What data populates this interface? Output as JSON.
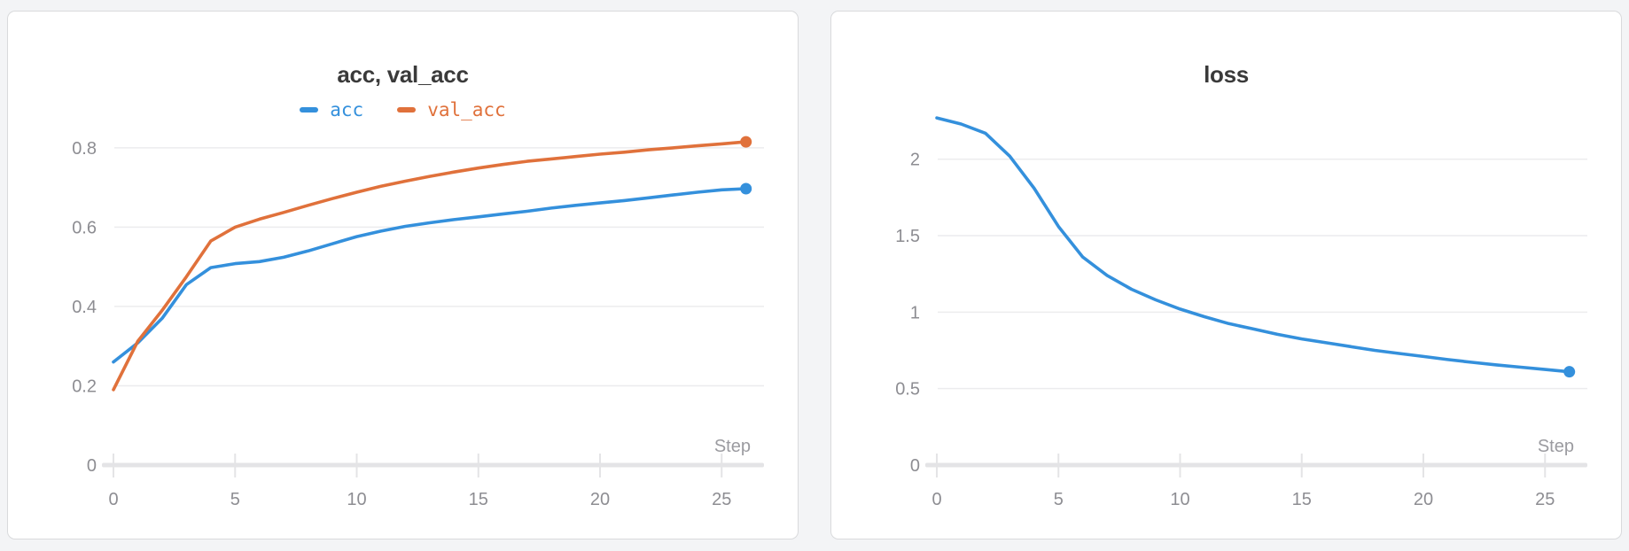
{
  "page": {
    "background_color": "#f3f4f6",
    "panel_background": "#ffffff",
    "panel_border_color": "#d9dadc",
    "gridline_color": "#ececee",
    "axis_color": "#e4e4e6",
    "tick_text_color": "#8d8d92",
    "title_text_color": "#3a3a3a"
  },
  "chart_data": [
    {
      "type": "line",
      "title": "acc, val_acc",
      "xlabel": "Step",
      "ylabel": "",
      "legend_position": "top-center",
      "grid": true,
      "x_ticks": [
        0,
        5,
        10,
        15,
        20,
        25
      ],
      "y_ticks": [
        {
          "value": 0.8,
          "label": "0.8"
        },
        {
          "value": 0.6,
          "label": "0.6"
        },
        {
          "value": 0.4,
          "label": "0.4"
        },
        {
          "value": 0.2,
          "label": "0.2"
        },
        {
          "value": 0,
          "label": "0"
        }
      ],
      "xlim": [
        0,
        26
      ],
      "ylim": [
        0,
        0.86
      ],
      "x": [
        0,
        1,
        2,
        3,
        4,
        5,
        6,
        7,
        8,
        9,
        10,
        11,
        12,
        13,
        14,
        15,
        16,
        17,
        18,
        19,
        20,
        21,
        22,
        23,
        24,
        25,
        26
      ],
      "series": [
        {
          "name": "acc",
          "color": "#3490dc",
          "end_dot": true,
          "values": [
            0.26,
            0.308,
            0.37,
            0.455,
            0.498,
            0.508,
            0.513,
            0.524,
            0.54,
            0.558,
            0.576,
            0.59,
            0.602,
            0.611,
            0.619,
            0.626,
            0.633,
            0.64,
            0.648,
            0.655,
            0.661,
            0.667,
            0.674,
            0.681,
            0.688,
            0.694,
            0.697
          ]
        },
        {
          "name": "val_acc",
          "color": "#e0713b",
          "end_dot": true,
          "values": [
            0.19,
            0.312,
            0.39,
            0.475,
            0.565,
            0.6,
            0.62,
            0.637,
            0.655,
            0.672,
            0.688,
            0.703,
            0.716,
            0.728,
            0.739,
            0.749,
            0.758,
            0.766,
            0.772,
            0.778,
            0.784,
            0.789,
            0.795,
            0.8,
            0.805,
            0.81,
            0.815
          ]
        }
      ]
    },
    {
      "type": "line",
      "title": "loss",
      "xlabel": "Step",
      "ylabel": "",
      "legend_position": "none",
      "grid": true,
      "x_ticks": [
        0,
        5,
        10,
        15,
        20,
        25
      ],
      "y_ticks": [
        {
          "value": 2,
          "label": "2"
        },
        {
          "value": 1.5,
          "label": "1.5"
        },
        {
          "value": 1,
          "label": "1"
        },
        {
          "value": 0.5,
          "label": "0.5"
        },
        {
          "value": 0,
          "label": "0"
        }
      ],
      "xlim": [
        0,
        26
      ],
      "ylim": [
        0,
        2.23
      ],
      "x": [
        0,
        1,
        2,
        3,
        4,
        5,
        6,
        7,
        8,
        9,
        10,
        11,
        12,
        13,
        14,
        15,
        16,
        17,
        18,
        19,
        20,
        21,
        22,
        23,
        24,
        25,
        26
      ],
      "series": [
        {
          "name": "loss",
          "color": "#3490dc",
          "end_dot": true,
          "values": [
            2.27,
            2.23,
            2.17,
            2.02,
            1.81,
            1.56,
            1.36,
            1.24,
            1.15,
            1.08,
            1.02,
            0.97,
            0.925,
            0.89,
            0.855,
            0.825,
            0.8,
            0.775,
            0.75,
            0.73,
            0.71,
            0.69,
            0.672,
            0.655,
            0.64,
            0.625,
            0.61
          ]
        }
      ]
    }
  ]
}
